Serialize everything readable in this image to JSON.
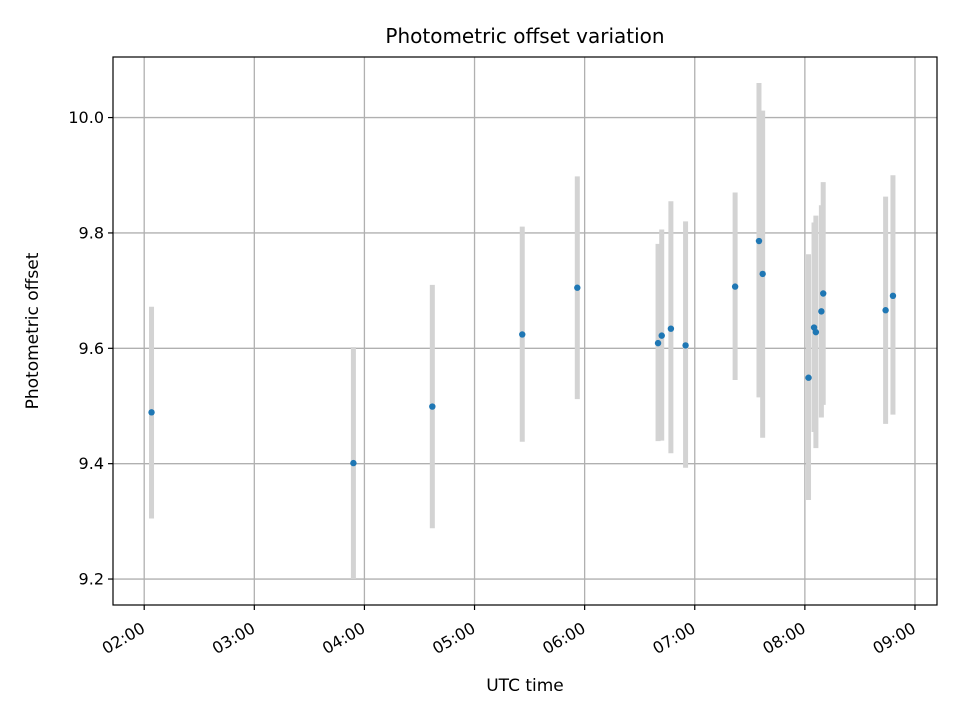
{
  "chart_data": {
    "type": "scatter",
    "title": "Photometric offset variation",
    "xlabel": "UTC time",
    "ylabel": "Photometric offset",
    "x_ticks": [
      "02:00",
      "03:00",
      "04:00",
      "05:00",
      "06:00",
      "07:00",
      "08:00",
      "09:00"
    ],
    "y_ticks": [
      "9.2",
      "9.4",
      "9.6",
      "9.8",
      "10.0"
    ],
    "xlim": [
      "01:43",
      "09:12"
    ],
    "ylim": [
      9.155,
      10.105
    ],
    "grid": true,
    "colors": {
      "point": "#1f77b4",
      "errorbar": "#d3d3d3",
      "grid": "#b0b0b0"
    },
    "series": [
      {
        "points": [
          {
            "time": "02:04",
            "y": 9.489,
            "err_low": 9.305,
            "err_high": 9.672
          },
          {
            "time": "03:54",
            "y": 9.401,
            "err_low": 9.2,
            "err_high": 9.602
          },
          {
            "time": "04:37",
            "y": 9.499,
            "err_low": 9.288,
            "err_high": 9.71
          },
          {
            "time": "05:26",
            "y": 9.624,
            "err_low": 9.438,
            "err_high": 9.811
          },
          {
            "time": "05:56",
            "y": 9.705,
            "err_low": 9.512,
            "err_high": 9.898
          },
          {
            "time": "06:40",
            "y": 9.609,
            "err_low": 9.439,
            "err_high": 9.781
          },
          {
            "time": "06:42",
            "y": 9.622,
            "err_low": 9.44,
            "err_high": 9.806
          },
          {
            "time": "06:47",
            "y": 9.634,
            "err_low": 9.418,
            "err_high": 9.855
          },
          {
            "time": "06:55",
            "y": 9.605,
            "err_low": 9.393,
            "err_high": 9.82
          },
          {
            "time": "07:22",
            "y": 9.707,
            "err_low": 9.545,
            "err_high": 9.87
          },
          {
            "time": "07:35",
            "y": 9.786,
            "err_low": 9.515,
            "err_high": 10.06
          },
          {
            "time": "07:37",
            "y": 9.729,
            "err_low": 9.445,
            "err_high": 10.012
          },
          {
            "time": "08:02",
            "y": 9.549,
            "err_low": 9.337,
            "err_high": 9.763
          },
          {
            "time": "08:05",
            "y": 9.636,
            "err_low": 9.455,
            "err_high": 9.818
          },
          {
            "time": "08:06",
            "y": 9.628,
            "err_low": 9.427,
            "err_high": 9.83
          },
          {
            "time": "08:09",
            "y": 9.664,
            "err_low": 9.48,
            "err_high": 9.848
          },
          {
            "time": "08:10",
            "y": 9.695,
            "err_low": 9.502,
            "err_high": 9.888
          },
          {
            "time": "08:44",
            "y": 9.666,
            "err_low": 9.469,
            "err_high": 9.863
          },
          {
            "time": "08:48",
            "y": 9.691,
            "err_low": 9.485,
            "err_high": 9.9
          }
        ]
      }
    ]
  }
}
